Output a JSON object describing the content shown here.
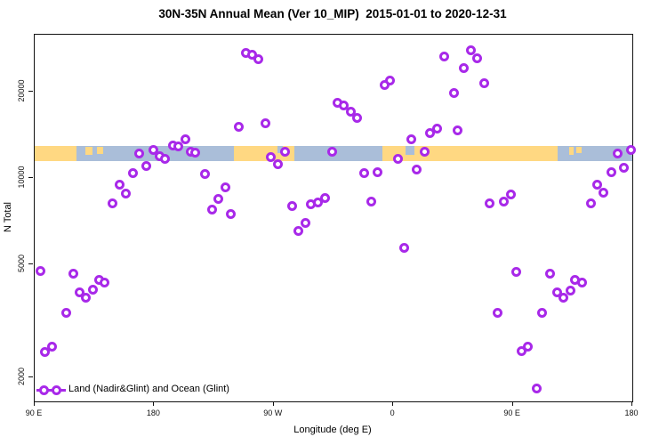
{
  "title": "30N-35N Annual Mean (Ver 10_MIP)  2015-01-01 to 2020-12-31",
  "axes": {
    "x_label": "Longitude (deg E)",
    "y_label": "N Total",
    "x_range_deg_unwrapped": [
      90,
      540
    ],
    "y_scale": "log10",
    "x_ticks": [
      {
        "deg": 90,
        "label": "90 E"
      },
      {
        "deg": 180,
        "label": "180"
      },
      {
        "deg": 270,
        "label": "90 W"
      },
      {
        "deg": 360,
        "label": "0"
      },
      {
        "deg": 450,
        "label": "90 E"
      },
      {
        "deg": 540,
        "label": "180"
      }
    ],
    "y_ticks": [
      {
        "value": 2000,
        "label": "2000"
      },
      {
        "value": 5000,
        "label": "5000"
      },
      {
        "value": 10000,
        "label": "10000"
      },
      {
        "value": 20000,
        "label": "20000"
      }
    ]
  },
  "legend": {
    "label": "Land (Nadir&Glint) and Ocean (Glint)"
  },
  "colors": {
    "point": "#A829E9",
    "land": "#FFD882",
    "ocean": "#AABED9",
    "axis": "#111111"
  },
  "map_strip": {
    "note": "land/ocean band drawn across plot at N~12200 level",
    "land_segments_deg": [
      [
        90,
        121.5
      ],
      [
        240.2,
        285.8
      ],
      [
        351.5,
        483.6
      ]
    ],
    "island_specks_deg": [
      {
        "range": [
          128,
          133.5
        ],
        "depth": 0.55
      },
      {
        "range": [
          137,
          141.5
        ],
        "depth": 0.45
      },
      {
        "range": [
          492.5,
          495.5
        ],
        "depth": 0.5
      },
      {
        "range": [
          497.5,
          501.5
        ],
        "depth": 0.4
      }
    ],
    "ocean_notches_deg": [
      {
        "range": [
          272.8,
          277.1
        ],
        "depth": 0.45
      },
      {
        "range": [
          369.5,
          376.2
        ],
        "depth": 0.6
      }
    ]
  },
  "chart_data": {
    "type": "scatter",
    "title": "30N-35N Annual Mean (Ver 10_MIP)  2015-01-01 to 2020-12-31",
    "xlabel": "Longitude (deg E)",
    "ylabel": "N Total",
    "x_unit": "degrees east, unwrapped axis 90..540",
    "ylim": [
      1700,
      30500
    ],
    "grid": false,
    "legend_position": "bottom-left-inside",
    "points": [
      {
        "lon": 249.0,
        "n": 27500
      },
      {
        "lon": 253.6,
        "n": 27100
      },
      {
        "lon": 258.3,
        "n": 26000
      },
      {
        "lon": 398.5,
        "n": 26700
      },
      {
        "lon": 418.6,
        "n": 28100
      },
      {
        "lon": 423.3,
        "n": 26200
      },
      {
        "lon": 413.2,
        "n": 24200
      },
      {
        "lon": 428.7,
        "n": 21500
      },
      {
        "lon": 405.9,
        "n": 19800
      },
      {
        "lon": 357.6,
        "n": 21900
      },
      {
        "lon": 353.6,
        "n": 21100
      },
      {
        "lon": 318.0,
        "n": 18400
      },
      {
        "lon": 322.7,
        "n": 18000
      },
      {
        "lon": 328.1,
        "n": 17100
      },
      {
        "lon": 332.8,
        "n": 16200
      },
      {
        "lon": 263.7,
        "n": 15500
      },
      {
        "lon": 243.6,
        "n": 15100
      },
      {
        "lon": 393.1,
        "n": 14900
      },
      {
        "lon": 387.8,
        "n": 14400
      },
      {
        "lon": 373.7,
        "n": 13700
      },
      {
        "lon": 408.6,
        "n": 14700
      },
      {
        "lon": 168.5,
        "n": 12200
      },
      {
        "lon": 179.2,
        "n": 12500
      },
      {
        "lon": 183.9,
        "n": 11900
      },
      {
        "lon": 187.9,
        "n": 11700
      },
      {
        "lon": 193.9,
        "n": 13000
      },
      {
        "lon": 198.0,
        "n": 12900
      },
      {
        "lon": 203.3,
        "n": 13700
      },
      {
        "lon": 207.4,
        "n": 12400
      },
      {
        "lon": 210.7,
        "n": 12300
      },
      {
        "lon": 278.5,
        "n": 12400
      },
      {
        "lon": 314.0,
        "n": 12400
      },
      {
        "lon": 267.7,
        "n": 11800
      },
      {
        "lon": 273.1,
        "n": 11200
      },
      {
        "lon": 363.6,
        "n": 11700
      },
      {
        "lon": 383.8,
        "n": 12400
      },
      {
        "lon": 528.6,
        "n": 12200
      },
      {
        "lon": 538.7,
        "n": 12500
      },
      {
        "lon": 377.7,
        "n": 10700
      },
      {
        "lon": 338.1,
        "n": 10400
      },
      {
        "lon": 348.2,
        "n": 10500
      },
      {
        "lon": 533.3,
        "n": 10900
      },
      {
        "lon": 523.9,
        "n": 10500
      },
      {
        "lon": 173.8,
        "n": 11000
      },
      {
        "lon": 163.8,
        "n": 10400
      },
      {
        "lon": 153.7,
        "n": 9500
      },
      {
        "lon": 158.4,
        "n": 8850
      },
      {
        "lon": 148.3,
        "n": 8130
      },
      {
        "lon": 218.1,
        "n": 10300
      },
      {
        "lon": 233.5,
        "n": 9310
      },
      {
        "lon": 228.2,
        "n": 8470
      },
      {
        "lon": 223.5,
        "n": 7730
      },
      {
        "lon": 237.6,
        "n": 7500
      },
      {
        "lon": 308.6,
        "n": 8530
      },
      {
        "lon": 303.3,
        "n": 8240
      },
      {
        "lon": 297.9,
        "n": 8070
      },
      {
        "lon": 283.8,
        "n": 8000
      },
      {
        "lon": 293.9,
        "n": 6980
      },
      {
        "lon": 288.5,
        "n": 6550
      },
      {
        "lon": 343.5,
        "n": 8300
      },
      {
        "lon": 368.3,
        "n": 5680
      },
      {
        "lon": 448.8,
        "n": 8730
      },
      {
        "lon": 443.4,
        "n": 8300
      },
      {
        "lon": 432.7,
        "n": 8150
      },
      {
        "lon": 513.2,
        "n": 9480
      },
      {
        "lon": 518.5,
        "n": 8890
      },
      {
        "lon": 508.5,
        "n": 8150
      },
      {
        "lon": 94.0,
        "n": 4740
      },
      {
        "lon": 118.8,
        "n": 4640
      },
      {
        "lon": 138.3,
        "n": 4410
      },
      {
        "lon": 142.3,
        "n": 4310
      },
      {
        "lon": 133.6,
        "n": 4080
      },
      {
        "lon": 123.5,
        "n": 3970
      },
      {
        "lon": 128.2,
        "n": 3800
      },
      {
        "lon": 113.5,
        "n": 3370
      },
      {
        "lon": 102.7,
        "n": 2570
      },
      {
        "lon": 97.4,
        "n": 2460
      },
      {
        "lon": 452.8,
        "n": 4710
      },
      {
        "lon": 478.3,
        "n": 4640
      },
      {
        "lon": 497.1,
        "n": 4410
      },
      {
        "lon": 502.4,
        "n": 4310
      },
      {
        "lon": 493.1,
        "n": 4050
      },
      {
        "lon": 483.7,
        "n": 3990
      },
      {
        "lon": 488.4,
        "n": 3800
      },
      {
        "lon": 438.7,
        "n": 3370
      },
      {
        "lon": 472.3,
        "n": 3370
      },
      {
        "lon": 461.5,
        "n": 2570
      },
      {
        "lon": 456.8,
        "n": 2480
      },
      {
        "lon": 468.2,
        "n": 1840
      }
    ]
  }
}
